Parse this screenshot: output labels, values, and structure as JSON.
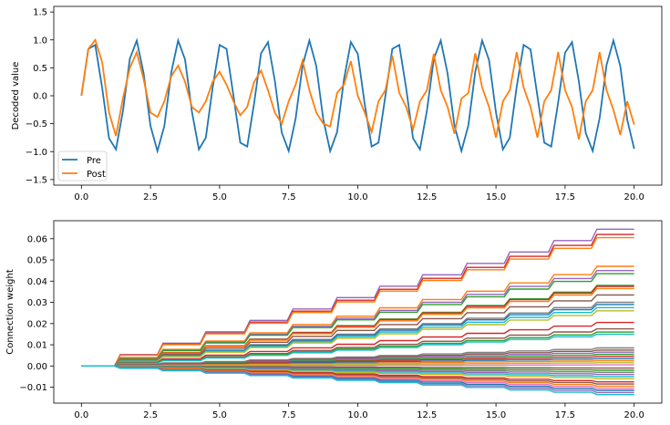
{
  "chart_data": [
    {
      "type": "line",
      "title": "",
      "xlabel": "",
      "ylabel": "Decoded value",
      "xlim": [
        -1.0,
        21.0
      ],
      "ylim": [
        -1.6,
        1.6
      ],
      "xticks": [
        0.0,
        2.5,
        5.0,
        7.5,
        10.0,
        12.5,
        15.0,
        17.5,
        20.0
      ],
      "xtick_labels": [
        "0.0",
        "2.5",
        "5.0",
        "7.5",
        "10.0",
        "12.5",
        "15.0",
        "17.5",
        "20.0"
      ],
      "yticks": [
        -1.5,
        -1.0,
        -0.5,
        0.0,
        0.5,
        1.0,
        1.5
      ],
      "ytick_labels": [
        "−1.5",
        "−1.0",
        "−0.5",
        "0.0",
        "0.5",
        "1.0",
        "1.5"
      ],
      "grid": false,
      "legend_position": "lower-left",
      "series": [
        {
          "name": "Pre",
          "color": "#1f77b4",
          "x": [
            0.0,
            0.25,
            0.5,
            0.75,
            1.0,
            1.25,
            1.5,
            1.75,
            2.0,
            2.25,
            2.5,
            2.75,
            3.0,
            3.25,
            3.5,
            3.75,
            4.0,
            4.25,
            4.5,
            4.75,
            5.0,
            5.25,
            5.5,
            5.75,
            6.0,
            6.25,
            6.5,
            6.75,
            7.0,
            7.25,
            7.5,
            7.75,
            8.0,
            8.25,
            8.5,
            8.75,
            9.0,
            9.25,
            9.5,
            9.75,
            10.0,
            10.25,
            10.5,
            10.75,
            11.0,
            11.25,
            11.5,
            11.75,
            12.0,
            12.25,
            12.5,
            12.75,
            13.0,
            13.25,
            13.5,
            13.75,
            14.0,
            14.25,
            14.5,
            14.75,
            15.0,
            15.25,
            15.5,
            15.75,
            16.0,
            16.25,
            16.5,
            16.75,
            17.0,
            17.25,
            17.5,
            17.75,
            18.0,
            18.25,
            18.5,
            18.75,
            19.0,
            19.25,
            19.5,
            19.75,
            20.0
          ],
          "y": [
            0.0,
            0.84,
            0.91,
            0.14,
            -0.76,
            -0.96,
            -0.28,
            0.66,
            0.99,
            0.41,
            -0.54,
            -0.99,
            -0.54,
            0.42,
            0.99,
            0.65,
            -0.29,
            -0.96,
            -0.75,
            0.15,
            0.91,
            0.84,
            0.0,
            -0.84,
            -0.91,
            -0.13,
            0.76,
            0.96,
            0.27,
            -0.66,
            -0.99,
            -0.41,
            0.54,
            0.99,
            0.53,
            -0.42,
            -0.99,
            -0.65,
            0.29,
            0.96,
            0.75,
            -0.15,
            -0.91,
            -0.84,
            0.0,
            0.84,
            0.91,
            0.13,
            -0.76,
            -0.96,
            -0.27,
            0.66,
            0.99,
            0.4,
            -0.54,
            -0.99,
            -0.53,
            0.43,
            0.99,
            0.64,
            -0.3,
            -0.96,
            -0.75,
            0.16,
            0.91,
            0.83,
            -0.01,
            -0.84,
            -0.91,
            -0.12,
            0.77,
            0.96,
            0.26,
            -0.67,
            -0.99,
            -0.4,
            0.55,
            0.99,
            0.53,
            -0.43,
            -0.95
          ]
        },
        {
          "name": "Post",
          "color": "#ff7f0e",
          "x": [
            0.0,
            0.25,
            0.5,
            0.75,
            1.0,
            1.25,
            1.5,
            1.75,
            2.0,
            2.25,
            2.5,
            2.75,
            3.0,
            3.25,
            3.5,
            3.75,
            4.0,
            4.25,
            4.5,
            4.75,
            5.0,
            5.25,
            5.5,
            5.75,
            6.0,
            6.25,
            6.5,
            6.75,
            7.0,
            7.25,
            7.5,
            7.75,
            8.0,
            8.25,
            8.5,
            8.75,
            9.0,
            9.25,
            9.5,
            9.75,
            10.0,
            10.25,
            10.5,
            10.75,
            11.0,
            11.25,
            11.5,
            11.75,
            12.0,
            12.25,
            12.5,
            12.75,
            13.0,
            13.25,
            13.5,
            13.75,
            14.0,
            14.25,
            14.5,
            14.75,
            15.0,
            15.25,
            15.5,
            15.75,
            16.0,
            16.25,
            16.5,
            16.75,
            17.0,
            17.25,
            17.5,
            17.75,
            18.0,
            18.25,
            18.5,
            18.75,
            19.0,
            19.25,
            19.5,
            19.75,
            20.0
          ],
          "y": [
            0.0,
            0.84,
            1.0,
            0.6,
            -0.3,
            -0.72,
            -0.05,
            0.5,
            0.78,
            0.3,
            -0.3,
            -0.38,
            -0.1,
            0.35,
            0.54,
            0.25,
            -0.2,
            -0.3,
            -0.1,
            0.25,
            0.43,
            0.2,
            -0.1,
            -0.35,
            -0.2,
            0.25,
            0.45,
            0.1,
            -0.3,
            -0.5,
            -0.1,
            0.2,
            0.63,
            0.1,
            -0.3,
            -0.5,
            -0.55,
            0.05,
            0.2,
            0.62,
            0.0,
            -0.3,
            -0.65,
            -0.1,
            0.1,
            0.72,
            0.05,
            -0.2,
            -0.6,
            -0.1,
            0.1,
            0.75,
            0.1,
            -0.2,
            -0.68,
            -0.05,
            0.05,
            0.76,
            0.15,
            -0.2,
            -0.75,
            -0.1,
            0.1,
            0.78,
            0.15,
            -0.2,
            -0.75,
            -0.1,
            0.1,
            0.78,
            0.1,
            -0.2,
            -0.78,
            -0.1,
            0.1,
            0.78,
            0.1,
            -0.25,
            -0.7,
            -0.1,
            -0.52
          ]
        }
      ]
    },
    {
      "type": "line",
      "title": "",
      "xlabel": "",
      "ylabel": "Connection weight",
      "xlim": [
        -1.0,
        21.0
      ],
      "ylim": [
        -0.0175,
        0.0685
      ],
      "xticks": [
        0.0,
        2.5,
        5.0,
        7.5,
        10.0,
        12.5,
        15.0,
        17.5,
        20.0
      ],
      "xtick_labels": [
        "0.0",
        "2.5",
        "5.0",
        "7.5",
        "10.0",
        "12.5",
        "15.0",
        "17.5",
        "20.0"
      ],
      "yticks": [
        -0.01,
        0.0,
        0.01,
        0.02,
        0.03,
        0.04,
        0.05,
        0.06
      ],
      "ytick_labels": [
        "−0.01",
        "0.00",
        "0.01",
        "0.02",
        "0.03",
        "0.04",
        "0.05",
        "0.06"
      ],
      "grid": false,
      "step_times": [
        1.2,
        2.75,
        4.3,
        5.9,
        7.45,
        9.05,
        10.6,
        12.15,
        13.75,
        15.3,
        16.9,
        18.45,
        20.0
      ],
      "series": [
        {
          "color": "#9467bd",
          "final": 0.0645
        },
        {
          "color": "#d62728",
          "final": 0.062
        },
        {
          "color": "#ff7f0e",
          "final": 0.0605
        },
        {
          "color": "#ff7f0e",
          "final": 0.047
        },
        {
          "color": "#9467bd",
          "final": 0.045
        },
        {
          "color": "#2ca02c",
          "final": 0.0435
        },
        {
          "color": "#2ca02c",
          "final": 0.038
        },
        {
          "color": "#d62728",
          "final": 0.0375
        },
        {
          "color": "#ff7f0e",
          "final": 0.0365
        },
        {
          "color": "#8c564b",
          "final": 0.0335
        },
        {
          "color": "#7f7f7f",
          "final": 0.03
        },
        {
          "color": "#1f77b4",
          "final": 0.029
        },
        {
          "color": "#17becf",
          "final": 0.0275
        },
        {
          "color": "#bcbd22",
          "final": 0.026
        },
        {
          "color": "#d62728",
          "final": 0.0205
        },
        {
          "color": "#8c564b",
          "final": 0.0175
        },
        {
          "color": "#2ca02c",
          "final": 0.016
        },
        {
          "color": "#17becf",
          "final": 0.015
        },
        {
          "color": "#7f7f7f",
          "final": 0.0085
        },
        {
          "color": "#8c564b",
          "final": 0.0075
        },
        {
          "color": "#9467bd",
          "final": 0.0065
        },
        {
          "color": "#2ca02c",
          "final": 0.0055
        },
        {
          "color": "#d62728",
          "final": 0.0045
        },
        {
          "color": "#1f77b4",
          "final": 0.0035
        },
        {
          "color": "#ff7f0e",
          "final": 0.0025
        },
        {
          "color": "#bcbd22",
          "final": 0.0015
        },
        {
          "color": "#e377c2",
          "final": 0.0005
        },
        {
          "color": "#8c564b",
          "final": -0.001
        },
        {
          "color": "#2ca02c",
          "final": -0.002
        },
        {
          "color": "#7f7f7f",
          "final": -0.003
        },
        {
          "color": "#9467bd",
          "final": -0.004
        },
        {
          "color": "#17becf",
          "final": -0.005
        },
        {
          "color": "#bcbd22",
          "final": -0.006
        },
        {
          "color": "#d62728",
          "final": -0.0075
        },
        {
          "color": "#8c564b",
          "final": -0.0085
        },
        {
          "color": "#ff7f0e",
          "final": -0.0095
        },
        {
          "color": "#e377c2",
          "final": -0.0105
        },
        {
          "color": "#1f77b4",
          "final": -0.0115
        },
        {
          "color": "#9467bd",
          "final": -0.0125
        },
        {
          "color": "#17becf",
          "final": -0.0135
        }
      ]
    }
  ]
}
